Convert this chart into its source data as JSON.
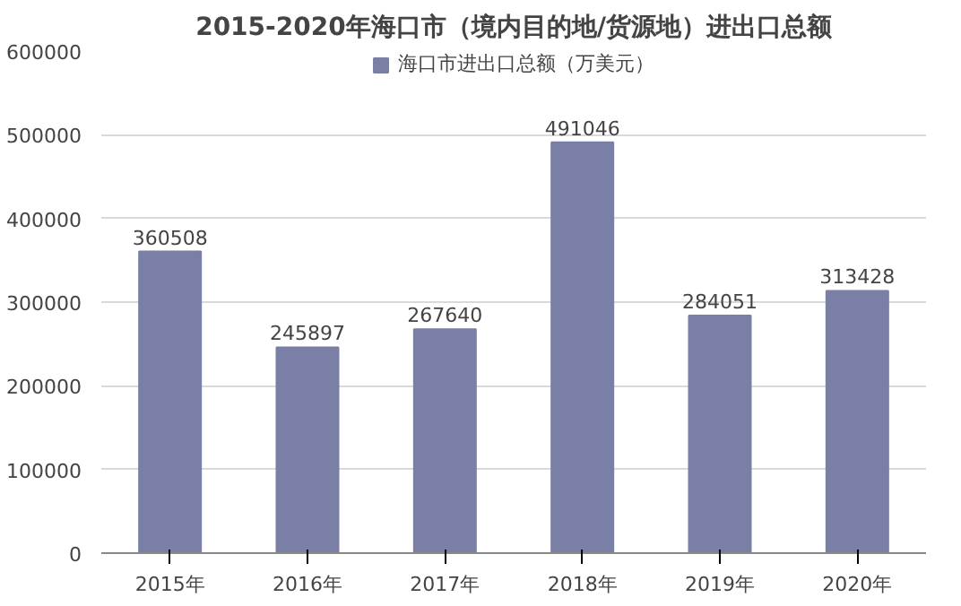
{
  "chart_data": {
    "type": "bar",
    "title": "2015-2020年海口市（境内目的地/货源地）进出口总额",
    "categories": [
      "2015年",
      "2016年",
      "2017年",
      "2018年",
      "2019年",
      "2020年"
    ],
    "series": [
      {
        "name": "海口市进出口总额（万美元）",
        "color": "#7a7fa5",
        "values": [
          360508,
          245897,
          267640,
          491046,
          284051,
          313428
        ]
      }
    ],
    "ylim": [
      0,
      600000
    ],
    "yticks": [
      0,
      100000,
      200000,
      300000,
      400000,
      500000,
      600000
    ],
    "grid": "y",
    "legend": "top",
    "data_labels": true
  }
}
